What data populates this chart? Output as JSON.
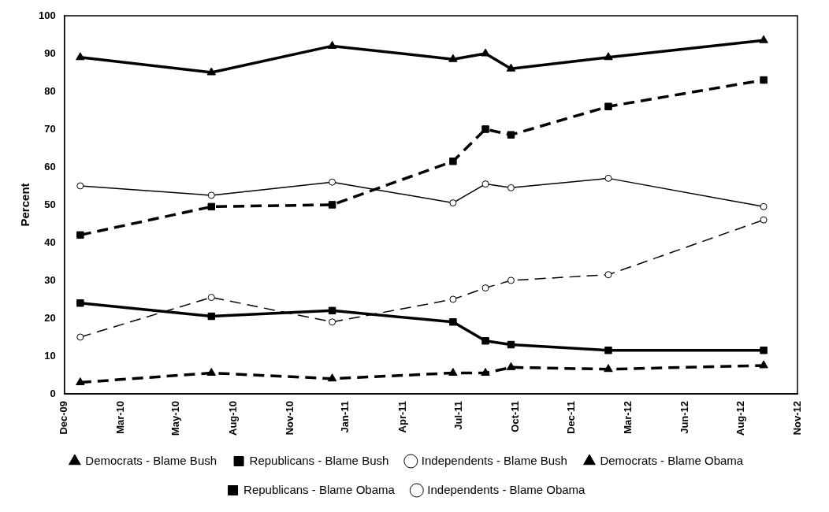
{
  "chart_data": {
    "type": "line",
    "ylabel": "Percent",
    "x": [
      "2010-01-12",
      "2010-07-21",
      "2011-01-12",
      "2011-07-06",
      "2011-08-22",
      "2011-09-28",
      "2012-02-16",
      "2012-09-28"
    ],
    "xlim": [
      "2009-12-20",
      "2012-11-16"
    ],
    "xticks": [
      {
        "value": "2009-12-20",
        "label": "Dec-09"
      },
      {
        "value": "2010-03-12",
        "label": "Mar-10"
      },
      {
        "value": "2010-05-31",
        "label": "May-10"
      },
      {
        "value": "2010-08-22",
        "label": "Aug-10"
      },
      {
        "value": "2010-11-12",
        "label": "Nov-10"
      },
      {
        "value": "2011-01-31",
        "label": "Jan-11"
      },
      {
        "value": "2011-04-24",
        "label": "Apr-11"
      },
      {
        "value": "2011-07-15",
        "label": "Jul-11"
      },
      {
        "value": "2011-10-05",
        "label": "Oct-11"
      },
      {
        "value": "2011-12-25",
        "label": "Dec-11"
      },
      {
        "value": "2012-03-16",
        "label": "Mar-12"
      },
      {
        "value": "2012-06-06",
        "label": "Jun-12"
      },
      {
        "value": "2012-08-26",
        "label": "Aug-12"
      },
      {
        "value": "2012-11-16",
        "label": "Nov-12"
      }
    ],
    "ylim": [
      0,
      100
    ],
    "yticks": [
      0,
      10,
      20,
      30,
      40,
      50,
      60,
      70,
      80,
      90,
      100
    ],
    "grid": false,
    "legend": "bottom",
    "series": [
      {
        "name": "Democrats - Blame Bush",
        "color": "#000000",
        "marker": "triangle",
        "line_style": "solid",
        "values": [
          89,
          85,
          92,
          88.5,
          90,
          86,
          89,
          93.5
        ]
      },
      {
        "name": "Republicans - Blame Bush",
        "color": "#000000",
        "marker": "square",
        "line_style": "solid",
        "values": [
          24,
          20.5,
          22,
          19,
          14,
          13,
          11.5,
          11.5
        ]
      },
      {
        "name": "Independents - Blame Bush",
        "color": "#000000",
        "marker": "circle",
        "line_style": "solid",
        "values": [
          55,
          52.5,
          56,
          50.5,
          55.5,
          54.5,
          57,
          49.5
        ]
      },
      {
        "name": "Democrats - Blame Obama",
        "color": "#000000",
        "marker": "triangle",
        "line_style": "dashed",
        "values": [
          3,
          5.5,
          4,
          5.5,
          5.5,
          7,
          6.5,
          7.5
        ]
      },
      {
        "name": "Republicans - Blame Obama",
        "color": "#000000",
        "marker": "square",
        "line_style": "dashed",
        "values": [
          42,
          49.5,
          50,
          61.5,
          70,
          68.5,
          76,
          83
        ]
      },
      {
        "name": "Independents - Blame Obama",
        "color": "#000000",
        "marker": "circle",
        "line_style": "dashed",
        "values": [
          15,
          25.5,
          19,
          25,
          28,
          30,
          31.5,
          46
        ]
      }
    ]
  }
}
